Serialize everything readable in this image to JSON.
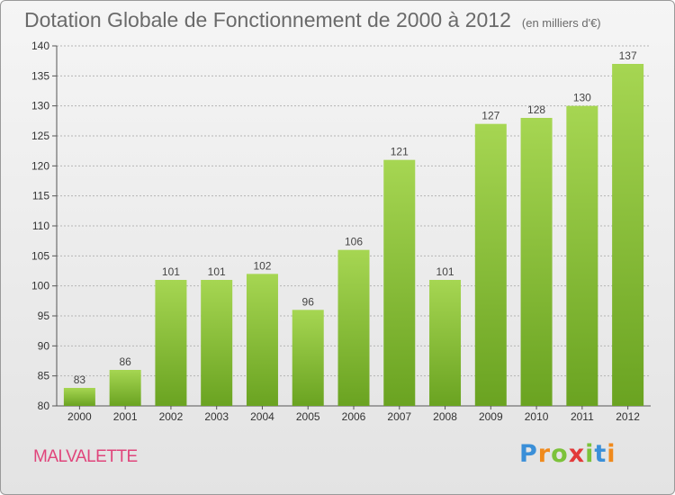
{
  "header": {
    "title": "Dotation Globale de Fonctionnement de 2000 à 2012",
    "unit": "(en milliers d'€)"
  },
  "footer": {
    "commune": "MALVALETTE",
    "logo": {
      "letters": [
        "P",
        "r",
        "o",
        "x",
        "i",
        "t",
        "i"
      ],
      "colors": [
        "#3a8fd8",
        "#f08a1c",
        "#7cc23a",
        "#e23a3a",
        "#7cc23a",
        "#3a8fd8",
        "#f08a1c"
      ]
    }
  },
  "colors": {
    "bar_top": "#a6d652",
    "bar_bottom": "#6aa321",
    "grid": "#b5b5b5",
    "title": "#6a6a6a",
    "commune": "#e0457b"
  },
  "chart_data": {
    "type": "bar",
    "title": "Dotation Globale de Fonctionnement de 2000 à 2012",
    "categories": [
      "2000",
      "2001",
      "2002",
      "2003",
      "2004",
      "2005",
      "2006",
      "2007",
      "2008",
      "2009",
      "2010",
      "2011",
      "2012"
    ],
    "values": [
      83,
      86,
      101,
      101,
      102,
      96,
      106,
      121,
      101,
      127,
      128,
      130,
      137
    ],
    "ylim": [
      80,
      140
    ],
    "yticks": [
      80,
      85,
      90,
      95,
      100,
      105,
      110,
      115,
      120,
      125,
      130,
      135,
      140
    ],
    "grid": true,
    "data_labels": true
  }
}
